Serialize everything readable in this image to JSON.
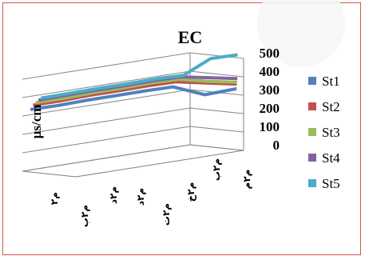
{
  "chart_data": {
    "type": "line",
    "title": "EC",
    "ylabel": "µs/cm",
    "xlabel": "",
    "ylim": [
      0,
      500
    ],
    "yticks": [
      0,
      100,
      200,
      300,
      400,
      500
    ],
    "categories": [
      "م۲",
      "م۲ب",
      "م۲د",
      "م۲د",
      "م۲ت",
      "م۲خ",
      "م۲ب",
      "م۲م"
    ],
    "grid": true,
    "legend_position": "right",
    "series": [
      {
        "name": "St1",
        "color": "#4f81bd",
        "values": [
          340,
          338,
          342,
          342,
          343,
          341,
          300,
          335
        ]
      },
      {
        "name": "St2",
        "color": "#c0504d",
        "values": [
          365,
          365,
          370,
          370,
          372,
          370,
          365,
          360
        ]
      },
      {
        "name": "St3",
        "color": "#9bbb59",
        "values": [
          380,
          380,
          385,
          385,
          388,
          385,
          375,
          370
        ]
      },
      {
        "name": "St4",
        "color": "#8064a2",
        "values": [
          395,
          398,
          400,
          400,
          402,
          400,
          395,
          390
        ]
      },
      {
        "name": "St5",
        "color": "#4bacc6",
        "values": [
          408,
          410,
          412,
          412,
          414,
          410,
          500,
          520
        ]
      }
    ]
  }
}
